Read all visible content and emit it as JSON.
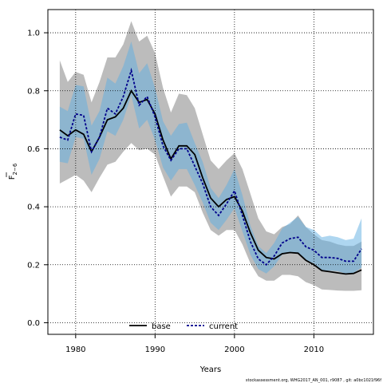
{
  "chart_data": {
    "type": "area",
    "xlabel": "Years",
    "ylabel": "F",
    "ylabel_sub": "2−6",
    "xlim": [
      1976.5,
      2017.5
    ],
    "ylim": [
      -0.04,
      1.08
    ],
    "x_ticks": [
      1980,
      1990,
      2000,
      2010
    ],
    "y_ticks": [
      0.0,
      0.2,
      0.4,
      0.6,
      0.8,
      1.0
    ],
    "y_tick_labels": [
      "0.0",
      "0.2",
      "0.4",
      "0.6",
      "0.8",
      "1.0"
    ],
    "grid": true,
    "legend_position": "bottom-center",
    "footnote": "stockassessment.org, WHG2017_AN_001, r9087 , git: a0bc1021f96f",
    "x": [
      1978,
      1979,
      1980,
      1981,
      1982,
      1983,
      1984,
      1985,
      1986,
      1987,
      1988,
      1989,
      1990,
      1991,
      1992,
      1993,
      1994,
      1995,
      1996,
      1997,
      1998,
      1999,
      2000,
      2001,
      2002,
      2003,
      2004,
      2005,
      2006,
      2007,
      2008,
      2009,
      2010,
      2011,
      2012,
      2013,
      2014,
      2015,
      2016
    ],
    "series": [
      {
        "name": "base",
        "color": "#000000",
        "style": "solid",
        "band_color": "#a6a6a6",
        "values": [
          0.665,
          0.645,
          0.665,
          0.65,
          0.59,
          0.64,
          0.7,
          0.71,
          0.74,
          0.8,
          0.76,
          0.77,
          0.72,
          0.63,
          0.565,
          0.61,
          0.61,
          0.58,
          0.5,
          0.43,
          0.4,
          0.425,
          0.435,
          0.385,
          0.31,
          0.25,
          0.225,
          0.22,
          0.238,
          0.242,
          0.24,
          0.215,
          0.2,
          0.18,
          0.176,
          0.172,
          0.168,
          0.17,
          0.182
        ],
        "lower": [
          0.48,
          0.495,
          0.51,
          0.49,
          0.45,
          0.5,
          0.545,
          0.555,
          0.59,
          0.62,
          0.595,
          0.6,
          0.58,
          0.505,
          0.435,
          0.47,
          0.47,
          0.45,
          0.38,
          0.32,
          0.3,
          0.32,
          0.32,
          0.27,
          0.205,
          0.16,
          0.145,
          0.145,
          0.165,
          0.165,
          0.16,
          0.14,
          0.13,
          0.115,
          0.113,
          0.111,
          0.11,
          0.11,
          0.112
        ],
        "upper": [
          0.905,
          0.83,
          0.865,
          0.855,
          0.76,
          0.83,
          0.915,
          0.915,
          0.96,
          1.04,
          0.97,
          0.99,
          0.93,
          0.81,
          0.725,
          0.79,
          0.785,
          0.74,
          0.65,
          0.56,
          0.53,
          0.56,
          0.585,
          0.53,
          0.445,
          0.36,
          0.315,
          0.305,
          0.33,
          0.34,
          0.37,
          0.33,
          0.305,
          0.285,
          0.28,
          0.27,
          0.265,
          0.265,
          0.28
        ]
      },
      {
        "name": "current",
        "color": "#00008b",
        "style": "dashed",
        "band_color": "#5dade2",
        "values": [
          0.64,
          0.63,
          0.72,
          0.715,
          0.59,
          0.64,
          0.74,
          0.72,
          0.78,
          0.87,
          0.75,
          0.78,
          0.71,
          0.61,
          0.56,
          0.6,
          0.6,
          0.54,
          0.48,
          0.4,
          0.37,
          0.41,
          0.455,
          0.37,
          0.28,
          0.22,
          0.2,
          0.23,
          0.275,
          0.29,
          0.295,
          0.262,
          0.25,
          0.225,
          0.225,
          0.222,
          0.212,
          0.212,
          0.255
        ],
        "lower": [
          0.555,
          0.55,
          0.64,
          0.635,
          0.51,
          0.565,
          0.66,
          0.645,
          0.7,
          0.785,
          0.67,
          0.7,
          0.63,
          0.535,
          0.49,
          0.53,
          0.53,
          0.475,
          0.415,
          0.345,
          0.32,
          0.355,
          0.395,
          0.315,
          0.235,
          0.185,
          0.17,
          0.195,
          0.235,
          0.24,
          0.24,
          0.215,
          0.205,
          0.18,
          0.18,
          0.178,
          0.17,
          0.172,
          0.19
        ],
        "upper": [
          0.745,
          0.73,
          0.82,
          0.815,
          0.68,
          0.73,
          0.845,
          0.825,
          0.885,
          0.97,
          0.86,
          0.895,
          0.81,
          0.695,
          0.645,
          0.685,
          0.69,
          0.62,
          0.555,
          0.465,
          0.43,
          0.475,
          0.53,
          0.44,
          0.335,
          0.265,
          0.24,
          0.275,
          0.325,
          0.345,
          0.365,
          0.33,
          0.32,
          0.295,
          0.3,
          0.295,
          0.285,
          0.29,
          0.36
        ]
      }
    ]
  }
}
